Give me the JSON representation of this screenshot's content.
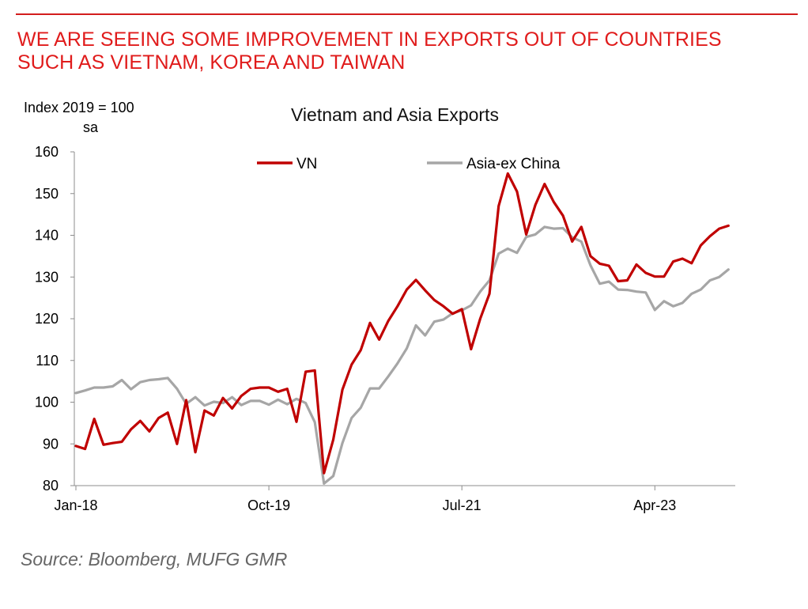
{
  "header": {
    "headline_line1": "WE ARE SEEING SOME IMPROVEMENT IN EXPORTS OUT OF COUNTRIES",
    "headline_line2": "SUCH AS VIETNAM, KOREA AND TAIWAN",
    "accent_color": "#e01b1b"
  },
  "chart_data": {
    "type": "line",
    "title": "Vietnam and Asia Exports",
    "ylabel": "Index 2019 = 100",
    "ylabel_unit": "sa",
    "xlabel": "",
    "ylim": [
      80,
      160
    ],
    "yticks": [
      80,
      90,
      100,
      110,
      120,
      130,
      140,
      150,
      160
    ],
    "xtick_labels": [
      "Jan-18",
      "Oct-19",
      "Jul-21",
      "Apr-23"
    ],
    "xtick_index": [
      0,
      21,
      42,
      63
    ],
    "grid": false,
    "legend_position": "top",
    "series": [
      {
        "name": "VN",
        "color": "#c00000",
        "values": [
          89.5,
          88.8,
          96,
          89.8,
          90.2,
          90.5,
          93.5,
          95.5,
          93,
          96.2,
          97.5,
          90,
          100.5,
          88,
          98,
          96.8,
          101,
          98.5,
          101.5,
          103.2,
          103.5,
          103.5,
          102.5,
          103.2,
          95.3,
          107.3,
          107.6,
          83,
          91,
          103,
          109,
          112.5,
          119,
          115,
          119.5,
          123,
          127,
          129.3,
          126.8,
          124.5,
          123,
          121.2,
          122.3,
          112.7,
          120,
          126,
          147,
          154.8,
          150.5,
          140.2,
          147.3,
          152.3,
          148,
          144.7,
          138.5,
          142,
          135,
          133.2,
          132.7,
          129,
          129.2,
          133,
          131,
          130.1,
          130.1,
          133.7,
          134.4,
          133.3,
          137.6,
          139.8,
          141.6,
          142.3
        ]
      },
      {
        "name": "Asia-ex China",
        "color": "#a6a6a6",
        "values": [
          102.2,
          102.8,
          103.5,
          103.5,
          103.8,
          105.3,
          103.1,
          104.8,
          105.3,
          105.5,
          105.8,
          103.2,
          99.6,
          101.2,
          99.2,
          100.1,
          99.8,
          101.2,
          99.3,
          100.3,
          100.3,
          99.4,
          100.6,
          99.5,
          100.8,
          99.8,
          95.2,
          80.5,
          82.3,
          90.2,
          96.2,
          98.7,
          103.3,
          103.3,
          106.2,
          109.3,
          112.9,
          118.4,
          116,
          119.3,
          119.8,
          121.3,
          122,
          123.2,
          126.5,
          129.2,
          135.6,
          136.8,
          135.8,
          139.6,
          140.2,
          142,
          141.6,
          141.7,
          139.5,
          138.5,
          132.8,
          128.4,
          128.9,
          127,
          126.9,
          126.5,
          126.3,
          122.1,
          124.2,
          123,
          123.8,
          126,
          127,
          129.2,
          130,
          131.8
        ]
      }
    ]
  },
  "footer": {
    "source": "Source: Bloomberg, MUFG GMR"
  }
}
